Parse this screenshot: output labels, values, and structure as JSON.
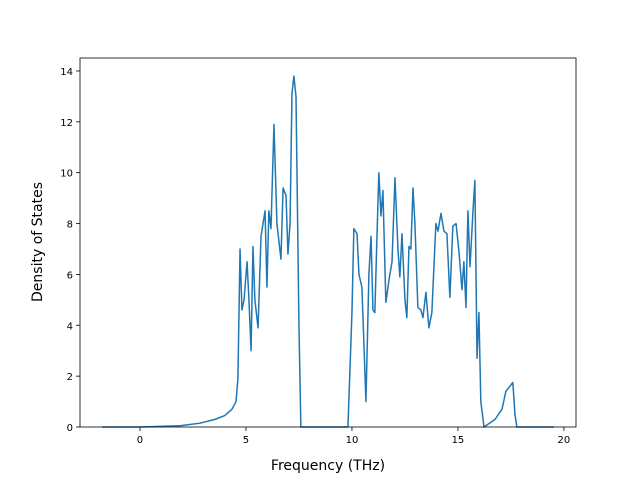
{
  "chart_data": {
    "type": "line",
    "xlabel": "Frequency (THz)",
    "ylabel": "Density of States",
    "xlim": [
      -2.83,
      20.57
    ],
    "ylim": [
      0,
      14.51
    ],
    "xticks": [
      0,
      5,
      10,
      15,
      20
    ],
    "yticks": [
      0,
      2,
      4,
      6,
      8,
      10,
      12,
      14
    ],
    "series": [
      {
        "color": "#1f77b4",
        "x": [
          -1.79,
          0,
          1.89,
          2.83,
          3.54,
          4.0,
          4.34,
          4.53,
          4.62,
          4.72,
          4.81,
          4.91,
          5.05,
          5.14,
          5.24,
          5.33,
          5.42,
          5.57,
          5.71,
          5.9,
          5.99,
          6.08,
          6.18,
          6.32,
          6.46,
          6.65,
          6.75,
          6.89,
          6.98,
          7.08,
          7.17,
          7.26,
          7.36,
          7.5,
          7.59,
          9.81,
          10.0,
          10.09,
          10.24,
          10.33,
          10.47,
          10.66,
          10.8,
          10.9,
          10.99,
          11.08,
          11.18,
          11.27,
          11.37,
          11.46,
          11.6,
          11.75,
          11.89,
          12.03,
          12.17,
          12.26,
          12.36,
          12.5,
          12.59,
          12.69,
          12.78,
          12.88,
          12.97,
          13.11,
          13.25,
          13.35,
          13.49,
          13.63,
          13.77,
          13.96,
          14.06,
          14.2,
          14.34,
          14.48,
          14.62,
          14.76,
          14.91,
          15.05,
          15.19,
          15.28,
          15.38,
          15.47,
          15.57,
          15.71,
          15.8,
          15.9,
          15.99,
          16.08,
          16.23,
          16.75,
          17.08,
          17.26,
          17.45,
          17.59,
          17.69,
          17.78,
          19.53
        ],
        "values": [
          0,
          0,
          0.05,
          0.15,
          0.3,
          0.45,
          0.7,
          1.0,
          1.9,
          7.0,
          4.6,
          5.0,
          6.5,
          5.0,
          3.0,
          7.1,
          5.0,
          3.9,
          7.5,
          8.5,
          5.5,
          8.5,
          7.8,
          11.9,
          8.0,
          6.6,
          9.4,
          9.1,
          6.8,
          8.0,
          13.1,
          13.8,
          13.0,
          4.0,
          0,
          0,
          4.5,
          7.8,
          7.6,
          6.0,
          5.5,
          1.0,
          6.0,
          7.5,
          4.6,
          4.5,
          7.5,
          10.0,
          8.3,
          9.3,
          4.9,
          5.8,
          6.5,
          9.8,
          7.0,
          5.9,
          7.6,
          5.0,
          4.3,
          7.1,
          7.0,
          9.4,
          8.0,
          4.7,
          4.6,
          4.3,
          5.3,
          3.9,
          4.5,
          8.0,
          7.7,
          8.4,
          7.7,
          7.6,
          5.1,
          7.9,
          8.0,
          6.9,
          5.4,
          6.5,
          4.7,
          8.5,
          6.3,
          8.5,
          9.7,
          2.7,
          4.5,
          1.0,
          0,
          0.3,
          0.7,
          1.4,
          1.6,
          1.75,
          0.5,
          0,
          0
        ]
      }
    ]
  }
}
